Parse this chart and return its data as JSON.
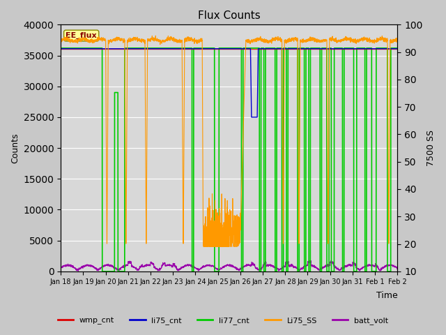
{
  "title": "Flux Counts",
  "xlabel": "Time",
  "ylabel_left": "Counts",
  "ylabel_right": "7500 SS",
  "annotation": "EE_flux",
  "ylim_left": [
    0,
    40000
  ],
  "ylim_right": [
    10,
    100
  ],
  "yticks_left": [
    0,
    5000,
    10000,
    15000,
    20000,
    25000,
    30000,
    35000,
    40000
  ],
  "yticks_right": [
    10,
    20,
    30,
    40,
    50,
    60,
    70,
    80,
    90,
    100
  ],
  "xtick_labels": [
    "Jan 18",
    "Jan 19",
    "Jan 20",
    "Jan 21",
    "Jan 22",
    "Jan 23",
    "Jan 24",
    "Jan 25",
    "Jan 26",
    "Jan 27",
    "Jan 28",
    "Jan 29",
    "Jan 30",
    "Jan 31",
    "Feb 1",
    "Feb 2"
  ],
  "fig_bg": "#c8c8c8",
  "plot_bg": "#d8d8d8",
  "colors": {
    "wmp_cnt": "#dd0000",
    "li75_cnt": "#0000cc",
    "li77_cnt": "#00cc00",
    "Li75_SS": "#ff9900",
    "batt_volt": "#9900aa"
  },
  "legend_labels": [
    "wmp_cnt",
    "li75_cnt",
    "li77_cnt",
    "Li75_SS",
    "batt_volt"
  ]
}
